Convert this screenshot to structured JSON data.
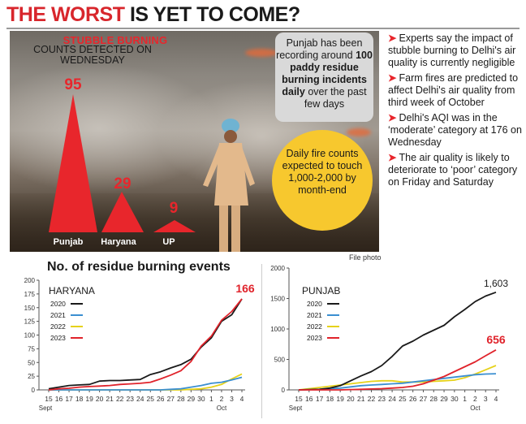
{
  "headline": {
    "part1": "THE WORST",
    "part2": "IS YET TO COME?"
  },
  "photo": {
    "stubble_title": "STUBBLE BURNING",
    "stubble_subtitle": "COUNTS DETECTED ON WEDNESDAY",
    "counts": [
      {
        "state": "Punjab",
        "value": "95"
      },
      {
        "state": "Haryana",
        "value": "29"
      },
      {
        "state": "UP",
        "value": "9"
      }
    ],
    "punjab_box": {
      "line1": "Punjab has been recording around",
      "bold": "100 paddy residue burning incidents daily",
      "line2": "over the past few days"
    },
    "circle_text": "Daily fire counts expected to touch 1,000-2,000 by month-end",
    "credit": "File photo"
  },
  "bullets": [
    "Experts say the impact of stubble burning to Delhi's air quality is currently negligible",
    "Farm fires are predicted to affect Delhi's air quality from third week of October",
    "Delhi's AQI was in the ‘moderate’ category at 176 on Wednesday",
    "The air quality is likely to deteriorate to ‘poor’ category on Friday and Saturday"
  ],
  "colors": {
    "accent_red": "#e8262c",
    "yellow": "#f7c82e",
    "y2020": "#1a1a1a",
    "y2021": "#3b8fd1",
    "y2022": "#e6d21a",
    "y2023": "#e0232b"
  },
  "chart_data": [
    {
      "type": "line",
      "title": "No. of residue burning events",
      "panel_label": "HARYANA",
      "x": [
        "15",
        "16",
        "17",
        "18",
        "19",
        "20",
        "21",
        "22",
        "23",
        "24",
        "25",
        "26",
        "27",
        "28",
        "29",
        "30",
        "1",
        "2",
        "3",
        "4"
      ],
      "x_month_labels": [
        "Sept",
        "Oct"
      ],
      "ylim": [
        0,
        200
      ],
      "yticks": [
        "0",
        "25",
        "50",
        "75",
        "100",
        "125",
        "150",
        "175",
        "200"
      ],
      "highlight_label": "166",
      "series": [
        {
          "name": "2020",
          "color": "#1a1a1a",
          "values": [
            2,
            5,
            8,
            9,
            10,
            16,
            17,
            17,
            18,
            19,
            28,
            33,
            40,
            46,
            56,
            78,
            95,
            125,
            137,
            166
          ]
        },
        {
          "name": "2021",
          "color": "#3b8fd1",
          "values": [
            0,
            0,
            0,
            0,
            0,
            0,
            0,
            0,
            0,
            0,
            0,
            0,
            1,
            2,
            5,
            8,
            12,
            14,
            18,
            23
          ]
        },
        {
          "name": "2022",
          "color": "#e6d21a",
          "values": [
            0,
            0,
            0,
            0,
            0,
            0,
            0,
            0,
            0,
            0,
            0,
            0,
            0,
            0,
            1,
            2,
            5,
            10,
            20,
            29
          ]
        },
        {
          "name": "2023",
          "color": "#e0232b",
          "values": [
            0,
            2,
            3,
            5,
            6,
            7,
            8,
            10,
            11,
            12,
            14,
            20,
            27,
            35,
            52,
            80,
            98,
            127,
            143,
            166
          ]
        }
      ]
    },
    {
      "type": "line",
      "panel_label": "PUNJAB",
      "x": [
        "15",
        "16",
        "17",
        "18",
        "19",
        "20",
        "21",
        "22",
        "23",
        "24",
        "25",
        "26",
        "27",
        "28",
        "29",
        "30",
        "1",
        "2",
        "3",
        "4"
      ],
      "x_month_labels": [
        "Sept",
        "Oct"
      ],
      "ylim": [
        0,
        2000
      ],
      "yticks": [
        "0",
        "500",
        "1000",
        "1500",
        "2000"
      ],
      "highlight_labels": [
        "1,603",
        "656"
      ],
      "series": [
        {
          "name": "2020",
          "color": "#1a1a1a",
          "values": [
            0,
            5,
            10,
            30,
            70,
            150,
            230,
            300,
            400,
            550,
            720,
            800,
            900,
            980,
            1060,
            1200,
            1320,
            1450,
            1540,
            1603
          ]
        },
        {
          "name": "2021",
          "color": "#3b8fd1",
          "values": [
            0,
            5,
            10,
            20,
            30,
            50,
            70,
            80,
            90,
            100,
            110,
            130,
            150,
            170,
            190,
            210,
            230,
            250,
            260,
            265
          ]
        },
        {
          "name": "2022",
          "color": "#e6d21a",
          "values": [
            0,
            20,
            40,
            60,
            80,
            100,
            120,
            140,
            150,
            150,
            130,
            130,
            130,
            140,
            150,
            160,
            200,
            260,
            330,
            400
          ]
        },
        {
          "name": "2023",
          "color": "#e0232b",
          "values": [
            0,
            0,
            0,
            0,
            0,
            5,
            10,
            15,
            20,
            30,
            40,
            60,
            100,
            160,
            220,
            300,
            380,
            460,
            560,
            656
          ]
        }
      ]
    }
  ]
}
